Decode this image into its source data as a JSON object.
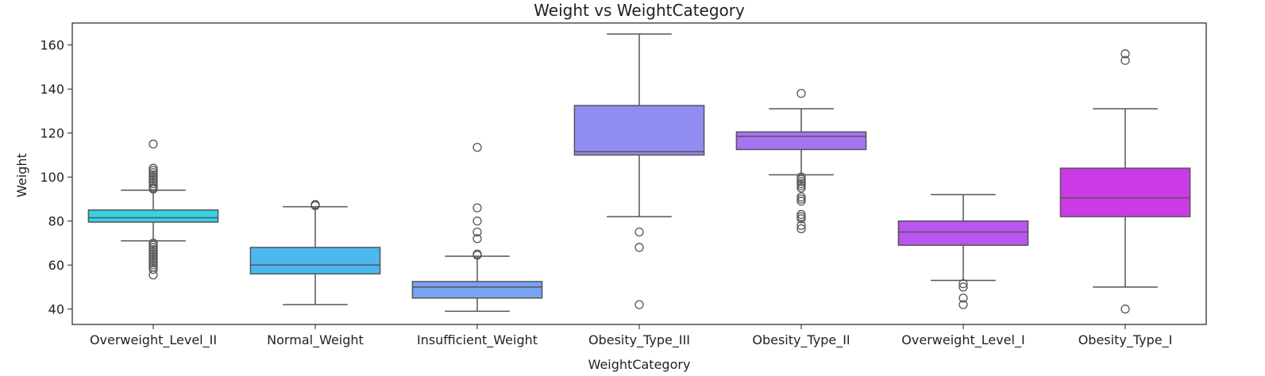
{
  "chart_data": {
    "type": "boxplot",
    "title": "Weight vs WeightCategory",
    "xlabel": "WeightCategory",
    "ylabel": "Weight",
    "ylim": [
      33,
      170
    ],
    "yticks": [
      40,
      60,
      80,
      100,
      120,
      140,
      160
    ],
    "grid": false,
    "categories": [
      "Overweight_Level_II",
      "Normal_Weight",
      "Insufficient_Weight",
      "Obesity_Type_III",
      "Obesity_Type_II",
      "Overweight_Level_I",
      "Obesity_Type_I"
    ],
    "colors": [
      "#36d0e6",
      "#4cb8f0",
      "#77a3f0",
      "#918cf1",
      "#a773f2",
      "#ba55f0",
      "#cc3ae6"
    ],
    "boxes": [
      {
        "category": "Overweight_Level_II",
        "whisker_low": 71,
        "q1": 79.5,
        "median": 81.5,
        "q3": 85,
        "whisker_high": 94,
        "outliers": [
          55.5,
          58,
          59,
          60,
          61,
          62,
          63,
          64,
          65,
          66,
          67,
          68,
          69,
          70,
          94.5,
          95,
          96,
          97,
          98,
          99,
          100,
          101,
          102,
          103,
          104,
          115
        ]
      },
      {
        "category": "Normal_Weight",
        "whisker_low": 42,
        "q1": 56,
        "median": 60,
        "q3": 68,
        "whisker_high": 86.5,
        "outliers": [
          87,
          87.5
        ]
      },
      {
        "category": "Insufficient_Weight",
        "whisker_low": 39,
        "q1": 45,
        "median": 50,
        "q3": 52.5,
        "whisker_high": 64,
        "outliers": [
          64.5,
          65,
          72,
          75,
          80,
          86,
          113.5
        ]
      },
      {
        "category": "Obesity_Type_III",
        "whisker_low": 82,
        "q1": 110,
        "median": 111.5,
        "q3": 132.5,
        "whisker_high": 165,
        "outliers": [
          42,
          68,
          75
        ]
      },
      {
        "category": "Obesity_Type_II",
        "whisker_low": 101,
        "q1": 112.5,
        "median": 118.5,
        "q3": 120.5,
        "whisker_high": 131,
        "outliers": [
          76.5,
          78,
          81,
          82,
          83,
          89,
          90,
          91,
          95,
          96,
          97,
          98,
          99,
          100,
          138
        ]
      },
      {
        "category": "Overweight_Level_I",
        "whisker_low": 53,
        "q1": 69,
        "median": 75,
        "q3": 80,
        "whisker_high": 92,
        "outliers": [
          42,
          45,
          50,
          51.5
        ]
      },
      {
        "category": "Obesity_Type_I",
        "whisker_low": 50,
        "q1": 82,
        "median": 90.5,
        "q3": 104,
        "whisker_high": 131,
        "outliers": [
          40,
          153,
          156
        ]
      }
    ]
  }
}
